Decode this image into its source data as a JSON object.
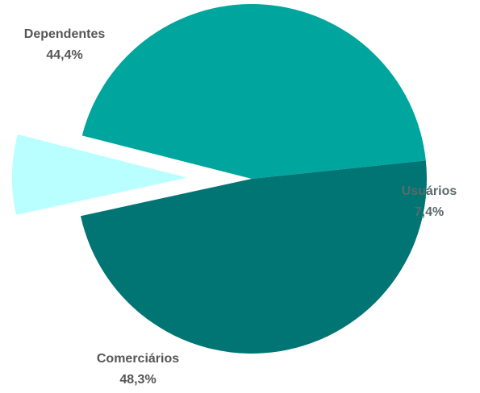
{
  "chart_data": {
    "type": "pie",
    "slices": [
      {
        "label": "Dependentes",
        "value": 44.4,
        "value_label": "44,4%",
        "color": "#00a59e"
      },
      {
        "label": "Usuários",
        "value": 7.4,
        "value_label": "7,4%",
        "color": "#b9ffff",
        "exploded": true
      },
      {
        "label": "Comerciários",
        "value": 48.3,
        "value_label": "48,3%",
        "color": "#007574"
      }
    ],
    "title": "",
    "legend": "none"
  }
}
